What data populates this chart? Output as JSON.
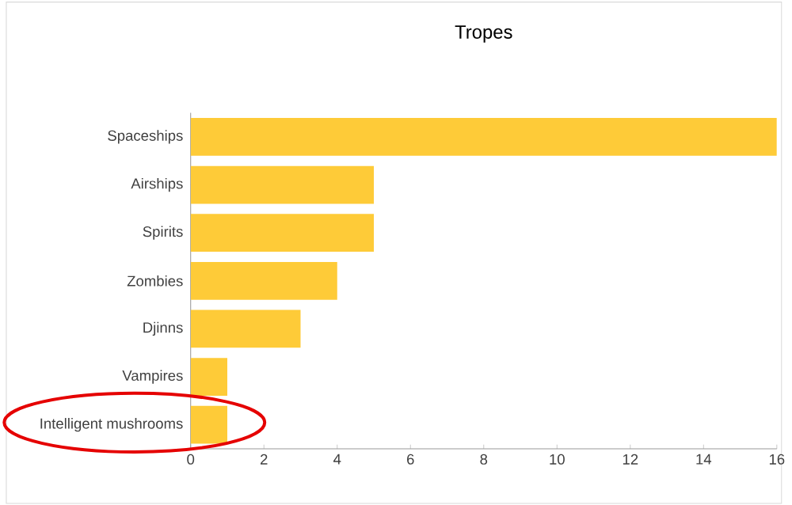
{
  "chart_data": {
    "type": "bar",
    "orientation": "horizontal",
    "title": "Tropes",
    "categories": [
      "Spaceships",
      "Airships",
      "Spirits",
      "Zombies",
      "Djinns",
      "Vampires",
      "Intelligent mushrooms"
    ],
    "values": [
      16,
      5,
      5,
      4,
      3,
      1,
      1
    ],
    "color": "#fecb38",
    "xlim": [
      0,
      16
    ],
    "xticks": [
      0,
      2,
      4,
      6,
      8,
      10,
      12,
      14,
      16
    ]
  }
}
